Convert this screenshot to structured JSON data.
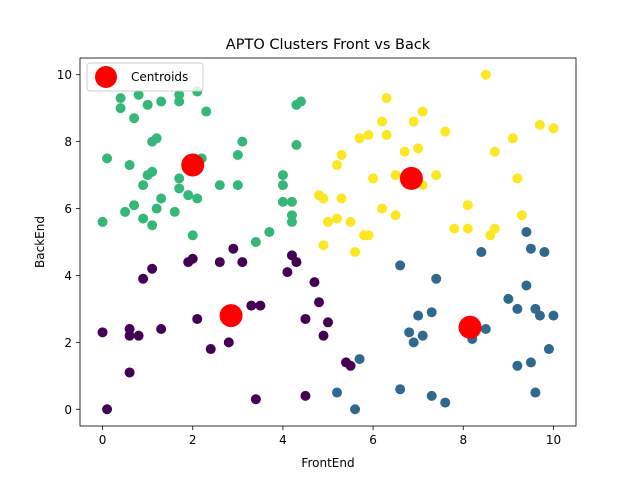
{
  "chart_data": {
    "type": "scatter",
    "title": "APTO Clusters Front vs Back",
    "xlabel": "FrontEnd",
    "ylabel": "BackEnd",
    "xlim": [
      -0.5,
      10.5
    ],
    "ylim": [
      -0.5,
      10.5
    ],
    "xticks": [
      0,
      2,
      4,
      6,
      8,
      10
    ],
    "yticks": [
      0,
      2,
      4,
      6,
      8,
      10
    ],
    "grid": false,
    "legend": {
      "placement": "top-left",
      "entries": [
        "Centroids"
      ]
    },
    "colors": {
      "cluster_purple": "#440154",
      "cluster_blue": "#31688e",
      "cluster_green": "#35b779",
      "cluster_yellow": "#fde725",
      "centroid": "#ff0000"
    },
    "series": [
      {
        "cluster": "purple",
        "color": "#440154",
        "points": [
          [
            0.1,
            0
          ],
          [
            0,
            2.3
          ],
          [
            0.6,
            2.2
          ],
          [
            0.6,
            2.4
          ],
          [
            0.8,
            2.2
          ],
          [
            0.6,
            1.1
          ],
          [
            0.9,
            3.9
          ],
          [
            1.1,
            4.2
          ],
          [
            1.3,
            2.4
          ],
          [
            1.9,
            4.4
          ],
          [
            2.0,
            4.5
          ],
          [
            2.1,
            2.7
          ],
          [
            2.4,
            1.8
          ],
          [
            2.6,
            4.4
          ],
          [
            2.8,
            2.0
          ],
          [
            2.9,
            4.8
          ],
          [
            3.1,
            4.4
          ],
          [
            3.3,
            3.1
          ],
          [
            3.5,
            3.1
          ],
          [
            3.4,
            0.3
          ],
          [
            4.1,
            4.1
          ],
          [
            4.2,
            4.6
          ],
          [
            4.3,
            4.4
          ],
          [
            4.5,
            2.7
          ],
          [
            4.5,
            0.4
          ],
          [
            4.7,
            3.8
          ],
          [
            4.8,
            3.2
          ],
          [
            4.9,
            2.2
          ],
          [
            5.0,
            2.6
          ],
          [
            5.4,
            1.4
          ],
          [
            5.5,
            1.3
          ]
        ]
      },
      {
        "cluster": "blue",
        "color": "#31688e",
        "points": [
          [
            5.2,
            0.5
          ],
          [
            5.6,
            0
          ],
          [
            5.7,
            1.5
          ],
          [
            6.6,
            4.3
          ],
          [
            6.6,
            0.6
          ],
          [
            6.8,
            2.3
          ],
          [
            6.9,
            2.0
          ],
          [
            7.0,
            2.8
          ],
          [
            7.1,
            2.2
          ],
          [
            7.3,
            0.4
          ],
          [
            7.3,
            2.9
          ],
          [
            7.4,
            3.9
          ],
          [
            7.6,
            0.2
          ],
          [
            8.2,
            2.1
          ],
          [
            8.4,
            4.7
          ],
          [
            8.5,
            2.4
          ],
          [
            9.0,
            3.3
          ],
          [
            9.2,
            3.0
          ],
          [
            9.2,
            1.3
          ],
          [
            9.4,
            5.3
          ],
          [
            9.4,
            3.7
          ],
          [
            9.5,
            4.8
          ],
          [
            9.5,
            1.4
          ],
          [
            9.6,
            3.0
          ],
          [
            9.7,
            2.8
          ],
          [
            9.6,
            0.5
          ],
          [
            9.8,
            4.7
          ],
          [
            9.9,
            1.8
          ],
          [
            10.0,
            2.8
          ]
        ]
      },
      {
        "cluster": "green",
        "color": "#35b779",
        "points": [
          [
            0,
            5.6
          ],
          [
            0.1,
            7.5
          ],
          [
            0.4,
            9.0
          ],
          [
            0.4,
            9.3
          ],
          [
            0.5,
            5.9
          ],
          [
            0.6,
            7.3
          ],
          [
            0.7,
            8.7
          ],
          [
            0.7,
            6.1
          ],
          [
            0.8,
            9.4
          ],
          [
            0.9,
            5.7
          ],
          [
            0.9,
            6.7
          ],
          [
            1.0,
            9.1
          ],
          [
            1.0,
            7.0
          ],
          [
            1.1,
            7.1
          ],
          [
            1.1,
            8.0
          ],
          [
            1.1,
            5.5
          ],
          [
            1.2,
            8.1
          ],
          [
            1.2,
            6.0
          ],
          [
            1.3,
            9.2
          ],
          [
            1.3,
            6.3
          ],
          [
            1.6,
            5.9
          ],
          [
            1.7,
            9.2
          ],
          [
            1.7,
            9.4
          ],
          [
            1.7,
            6.9
          ],
          [
            1.7,
            6.6
          ],
          [
            1.9,
            6.4
          ],
          [
            2.0,
            5.2
          ],
          [
            2.1,
            6.3
          ],
          [
            2.1,
            9.5
          ],
          [
            2.2,
            7.5
          ],
          [
            2.3,
            8.9
          ],
          [
            2.6,
            6.7
          ],
          [
            3.0,
            7.6
          ],
          [
            3.0,
            6.7
          ],
          [
            3.1,
            8.0
          ],
          [
            3.4,
            5.0
          ],
          [
            3.7,
            5.3
          ],
          [
            4.0,
            7.0
          ],
          [
            4.0,
            6.7
          ],
          [
            4.0,
            6.2
          ],
          [
            4.2,
            6.2
          ],
          [
            4.2,
            5.8
          ],
          [
            4.2,
            5.6
          ],
          [
            4.3,
            7.9
          ],
          [
            4.3,
            9.1
          ],
          [
            4.4,
            9.2
          ]
        ]
      },
      {
        "cluster": "yellow",
        "color": "#fde725",
        "points": [
          [
            4.8,
            6.4
          ],
          [
            4.9,
            6.3
          ],
          [
            4.9,
            4.9
          ],
          [
            5.0,
            5.6
          ],
          [
            5.2,
            7.3
          ],
          [
            5.2,
            5.7
          ],
          [
            5.3,
            7.6
          ],
          [
            5.3,
            6.3
          ],
          [
            5.5,
            5.6
          ],
          [
            5.6,
            4.7
          ],
          [
            5.7,
            8.1
          ],
          [
            5.8,
            5.2
          ],
          [
            5.9,
            8.2
          ],
          [
            5.9,
            5.2
          ],
          [
            6.0,
            6.9
          ],
          [
            6.2,
            8.6
          ],
          [
            6.2,
            6.0
          ],
          [
            6.3,
            9.3
          ],
          [
            6.3,
            8.2
          ],
          [
            6.5,
            7.0
          ],
          [
            6.5,
            5.8
          ],
          [
            6.7,
            7.7
          ],
          [
            6.9,
            8.6
          ],
          [
            7.0,
            7.8
          ],
          [
            7.1,
            8.9
          ],
          [
            7.1,
            6.7
          ],
          [
            7.4,
            7.0
          ],
          [
            7.6,
            8.3
          ],
          [
            7.8,
            5.4
          ],
          [
            8.1,
            6.1
          ],
          [
            8.1,
            5.4
          ],
          [
            8.5,
            10.0
          ],
          [
            8.6,
            5.2
          ],
          [
            8.7,
            7.7
          ],
          [
            8.7,
            5.4
          ],
          [
            9.1,
            8.1
          ],
          [
            9.2,
            6.9
          ],
          [
            9.3,
            5.8
          ],
          [
            9.7,
            8.5
          ],
          [
            10.0,
            8.4
          ]
        ]
      },
      {
        "cluster": "centroids",
        "name": "Centroids",
        "color": "#ff0000",
        "points": [
          [
            2.0,
            7.3
          ],
          [
            2.85,
            2.8
          ],
          [
            6.85,
            6.9
          ],
          [
            8.15,
            2.45
          ]
        ]
      }
    ]
  }
}
